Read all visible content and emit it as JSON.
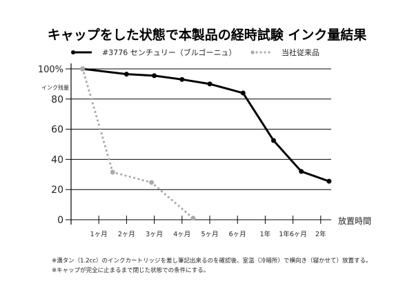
{
  "chart_data": {
    "type": "line",
    "title": "キャップをした状態で本製品の経時試験 インク量結果",
    "ylabel": "インク残量",
    "xlabel": "放置時間",
    "ylim": [
      0,
      100
    ],
    "yticks": [
      "100%",
      "80",
      "60",
      "40",
      "20",
      "0"
    ],
    "ytick_values": [
      100,
      80,
      60,
      40,
      20,
      0
    ],
    "categories": [
      "1ヶ月",
      "2ヶ月",
      "3ヶ月",
      "4ヶ月",
      "5ヶ月",
      "6ヶ月",
      "1年",
      "1年6ヶ月",
      "2年"
    ],
    "x_note": "x given in category-tick units (0 = origin, 1 = 1ヶ月, ...)",
    "series": [
      {
        "name": "#3776 センチュリー（ブルゴーニュ）",
        "style": "solid",
        "color": "#000000",
        "x": [
          0.42,
          2,
          3,
          4,
          5,
          6.2,
          7.3,
          8.3,
          9.3
        ],
        "values": [
          100,
          96.5,
          95.5,
          93,
          90,
          84,
          52.5,
          32,
          25.5
        ]
      },
      {
        "name": "当社従来品",
        "style": "dotted",
        "color": "#aaaaaa",
        "x": [
          0.42,
          1.5,
          2.9,
          4.4
        ],
        "values": [
          100,
          31.5,
          24.7,
          1
        ]
      }
    ],
    "legend": "top",
    "grid": true,
    "notes": [
      "※満タン（1.2cc）のインクカートリッジを差し筆記出来るのを確認後、室温（冷暗所）で横向き（寝かせて）放置する。",
      "※キャップが完全に止まるまで閉じた状態での条件にする。"
    ]
  }
}
